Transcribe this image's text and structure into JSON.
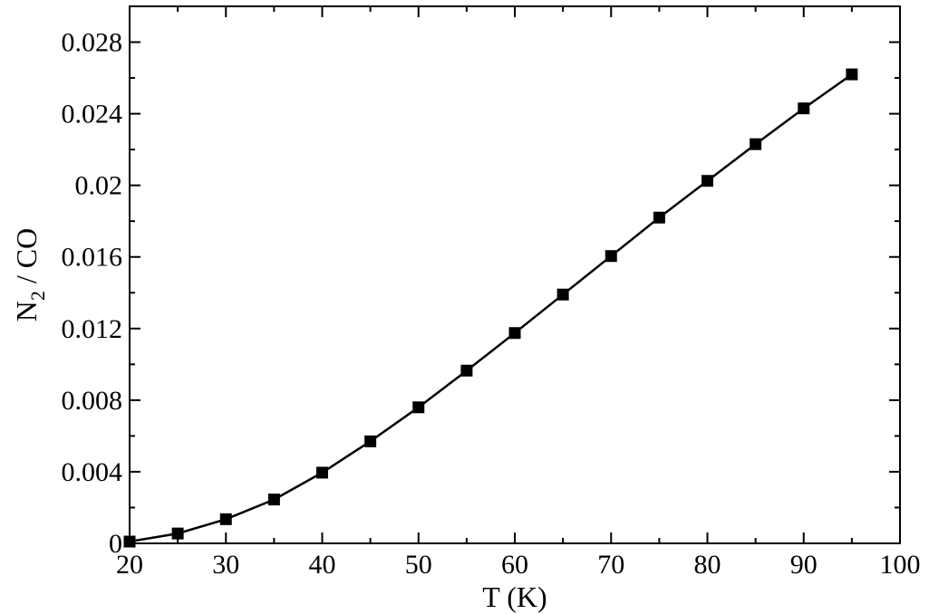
{
  "chart_data": {
    "type": "line",
    "xlabel": "T (K)",
    "ylabel_main": "N",
    "ylabel_sub": "2",
    "ylabel_rest": " / CO",
    "xlim": [
      20,
      100
    ],
    "ylim": [
      0,
      0.03
    ],
    "xticks": [
      20,
      30,
      40,
      50,
      60,
      70,
      80,
      90,
      100
    ],
    "xtick_labels": [
      "20",
      "30",
      "40",
      "50",
      "60",
      "70",
      "80",
      "90",
      "100"
    ],
    "yticks": [
      0,
      0.004,
      0.008,
      0.012,
      0.016,
      0.02,
      0.024,
      0.028
    ],
    "ytick_labels": [
      "0",
      "0.004",
      "0.008",
      "0.012",
      "0.016",
      "0.02",
      "0.024",
      "0.028"
    ],
    "grid": false,
    "series": [
      {
        "marker": "square",
        "color": "#000000",
        "x": [
          20,
          25,
          30,
          35,
          40,
          45,
          50,
          55,
          60,
          65,
          70,
          75,
          80,
          85,
          90,
          95
        ],
        "y": [
          0.0001,
          0.00055,
          0.00135,
          0.00245,
          0.00395,
          0.0057,
          0.0076,
          0.00965,
          0.01175,
          0.0139,
          0.01605,
          0.0182,
          0.02025,
          0.0223,
          0.0243,
          0.0262
        ]
      }
    ]
  }
}
